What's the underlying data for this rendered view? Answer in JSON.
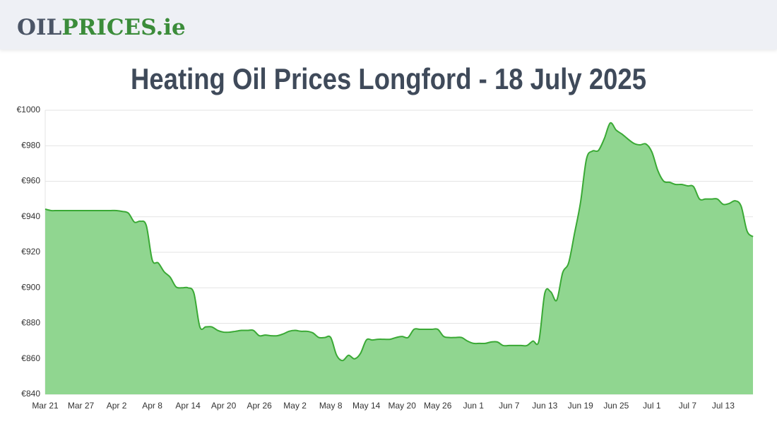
{
  "header": {
    "logo": [
      "OIL",
      "PRICES.ie"
    ]
  },
  "chart_data": {
    "type": "area",
    "title": "Heating Oil Prices Longford - 18 July 2025",
    "categories": [
      "Mar 21",
      null,
      null,
      null,
      null,
      null,
      "Mar 27",
      null,
      null,
      null,
      null,
      null,
      "Apr 2",
      null,
      null,
      null,
      null,
      null,
      "Apr 8",
      null,
      null,
      null,
      null,
      null,
      "Apr 14",
      null,
      null,
      null,
      null,
      null,
      "Apr 20",
      null,
      null,
      null,
      null,
      null,
      "Apr 26",
      null,
      null,
      null,
      null,
      null,
      "May 2",
      null,
      null,
      null,
      null,
      null,
      "May 8",
      null,
      null,
      null,
      null,
      null,
      "May 14",
      null,
      null,
      null,
      null,
      null,
      "May 20",
      null,
      null,
      null,
      null,
      null,
      "May 26",
      null,
      null,
      null,
      null,
      null,
      "Jun 1",
      null,
      null,
      null,
      null,
      null,
      "Jun 7",
      null,
      null,
      null,
      null,
      null,
      "Jun 13",
      null,
      null,
      null,
      null,
      null,
      "Jun 19",
      null,
      null,
      null,
      null,
      null,
      "Jun 25",
      null,
      null,
      null,
      null,
      null,
      "Jul 1",
      null,
      null,
      null,
      null,
      null,
      "Jul 7",
      null,
      null,
      null,
      null,
      null,
      "Jul 13",
      null,
      null,
      null,
      null,
      null
    ],
    "values": [
      944.3,
      943.5,
      943.5,
      943.5,
      943.5,
      943.5,
      943.5,
      943.5,
      943.5,
      943.5,
      943.5,
      943.5,
      943.5,
      943,
      942,
      937,
      937.5,
      935,
      915.6,
      914,
      909,
      906,
      900.5,
      900,
      900,
      897,
      878,
      878,
      878,
      876,
      875,
      875,
      875.5,
      876,
      876,
      876,
      873,
      873.4,
      873,
      873,
      874,
      875.5,
      876,
      875.5,
      875.5,
      874.6,
      872,
      872,
      872,
      862,
      859,
      862,
      860,
      863,
      870.6,
      870.6,
      871,
      871,
      871,
      872,
      872.6,
      872,
      876.6,
      876.6,
      876.6,
      876.6,
      876.6,
      872.6,
      872,
      872,
      872,
      870,
      868.7,
      868.7,
      868.7,
      869.5,
      869.5,
      867.5,
      867.5,
      867.5,
      867.5,
      867.5,
      870,
      870,
      897,
      897.7,
      893,
      908.5,
      914,
      930.7,
      948,
      972.5,
      977,
      977.3,
      984,
      992.8,
      988.8,
      986.5,
      983.7,
      981.3,
      980.5,
      981,
      976.5,
      966,
      960,
      959.4,
      958.2,
      958.2,
      957.4,
      957,
      950,
      950,
      950,
      950,
      947,
      947.5,
      949,
      946,
      932,
      928.8
    ],
    "line_color": "#3aa935",
    "fill_color": "#90d690",
    "ylim": [
      840,
      1000
    ],
    "yticks": [
      {
        "value": 840,
        "label": "€840"
      },
      {
        "value": 860,
        "label": "€860"
      },
      {
        "value": 880,
        "label": "€880"
      },
      {
        "value": 900,
        "label": "€900"
      },
      {
        "value": 920,
        "label": "€920"
      },
      {
        "value": 940,
        "label": "€940"
      },
      {
        "value": 960,
        "label": "€960"
      },
      {
        "value": 980,
        "label": "€980"
      },
      {
        "value": 1000,
        "label": "€1000"
      }
    ],
    "grid": true
  }
}
